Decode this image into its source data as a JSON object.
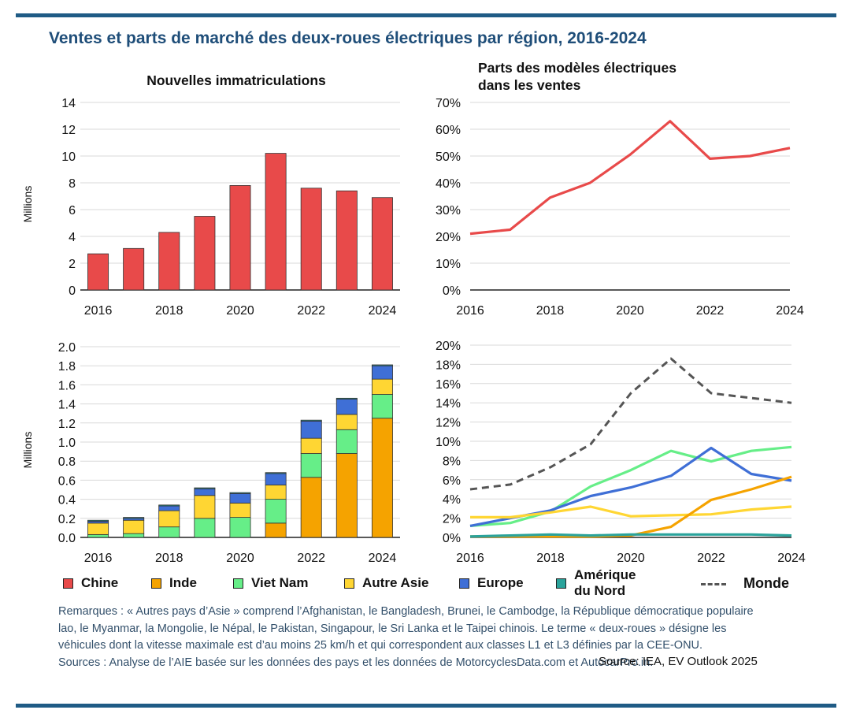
{
  "title": "Ventes et parts de marché des deux-roues électriques par région, 2016-2024",
  "colors": {
    "rule": "#1f5b85",
    "title": "#1f4e79",
    "chine": "#e84a4a",
    "inde": "#f5a300",
    "vietnam": "#66ee88",
    "autre_asie": "#ffd633",
    "europe": "#3f6fd6",
    "amerique_nord": "#2aa39b",
    "monde": "#555555"
  },
  "chart_data": [
    {
      "id": "tl",
      "type": "bar",
      "title": "Nouvelles immatriculations",
      "ylabel": "Millions",
      "categories": [
        "2016",
        "2017",
        "2018",
        "2019",
        "2020",
        "2021",
        "2022",
        "2023",
        "2024"
      ],
      "x_tick_labels": [
        "2016",
        "2018",
        "2020",
        "2022",
        "2024"
      ],
      "ylim": [
        0,
        14
      ],
      "y_ticks": [
        "0",
        "2",
        "4",
        "6",
        "8",
        "10",
        "12",
        "14"
      ],
      "series": [
        {
          "name": "Chine",
          "values": [
            2.7,
            3.1,
            4.3,
            5.5,
            7.8,
            10.2,
            7.6,
            7.4,
            6.9
          ]
        }
      ]
    },
    {
      "id": "tr",
      "type": "line",
      "title": "Parts des modèles électriques dans les ventes",
      "title_lines": [
        "Parts des modèles électriques",
        "dans les ventes"
      ],
      "x": [
        2016,
        2017,
        2018,
        2019,
        2020,
        2021,
        2022,
        2023,
        2024
      ],
      "x_tick_labels": [
        "2016",
        "2018",
        "2020",
        "2022",
        "2024"
      ],
      "ylim": [
        0,
        70
      ],
      "y_ticks": [
        "0%",
        "10%",
        "20%",
        "30%",
        "40%",
        "50%",
        "60%",
        "70%"
      ],
      "series": [
        {
          "name": "Chine",
          "values": [
            21,
            22.5,
            34.5,
            40,
            50.5,
            63,
            49,
            50,
            53
          ]
        }
      ]
    },
    {
      "id": "bl",
      "type": "bar",
      "stacked": true,
      "ylabel": "Millions",
      "categories": [
        "2016",
        "2017",
        "2018",
        "2019",
        "2020",
        "2021",
        "2022",
        "2023",
        "2024"
      ],
      "x_tick_labels": [
        "2016",
        "2018",
        "2020",
        "2022",
        "2024"
      ],
      "ylim": [
        0,
        2.0
      ],
      "y_ticks": [
        "0.0",
        "0.2",
        "0.4",
        "0.6",
        "0.8",
        "1.0",
        "1.2",
        "1.4",
        "1.6",
        "1.8",
        "2.0"
      ],
      "series": [
        {
          "name": "Inde",
          "values": [
            0.0,
            0.0,
            0.0,
            0.0,
            0.0,
            0.15,
            0.63,
            0.88,
            1.25
          ]
        },
        {
          "name": "Viet Nam",
          "values": [
            0.03,
            0.04,
            0.11,
            0.2,
            0.21,
            0.25,
            0.25,
            0.25,
            0.25
          ]
        },
        {
          "name": "Autre Asie",
          "values": [
            0.12,
            0.14,
            0.17,
            0.24,
            0.15,
            0.15,
            0.16,
            0.16,
            0.16
          ]
        },
        {
          "name": "Europe",
          "values": [
            0.02,
            0.02,
            0.05,
            0.07,
            0.1,
            0.12,
            0.18,
            0.16,
            0.14
          ]
        },
        {
          "name": "Amérique du Nord",
          "values": [
            0.01,
            0.01,
            0.01,
            0.01,
            0.01,
            0.01,
            0.01,
            0.01,
            0.01
          ]
        }
      ]
    },
    {
      "id": "br",
      "type": "line",
      "x": [
        2016,
        2017,
        2018,
        2019,
        2020,
        2021,
        2022,
        2023,
        2024
      ],
      "x_tick_labels": [
        "2016",
        "2018",
        "2020",
        "2022",
        "2024"
      ],
      "ylim": [
        0,
        20
      ],
      "y_ticks": [
        "0%",
        "2%",
        "4%",
        "6%",
        "8%",
        "10%",
        "12%",
        "14%",
        "16%",
        "18%",
        "20%"
      ],
      "series": [
        {
          "name": "Monde",
          "values": [
            5,
            5.5,
            7.3,
            9.7,
            15,
            18.6,
            15,
            14.5,
            14
          ],
          "dashed": true
        },
        {
          "name": "Viet Nam",
          "values": [
            1.2,
            1.5,
            2.7,
            5.3,
            7,
            9,
            7.9,
            9,
            9.4
          ]
        },
        {
          "name": "Europe",
          "values": [
            1.2,
            2,
            2.8,
            4.3,
            5.2,
            6.4,
            9.3,
            6.6,
            5.9
          ]
        },
        {
          "name": "Autre Asie",
          "values": [
            2.1,
            2.1,
            2.6,
            3.2,
            2.2,
            2.3,
            2.4,
            2.9,
            3.2
          ]
        },
        {
          "name": "Inde",
          "values": [
            0.1,
            0.1,
            0.1,
            0.1,
            0.2,
            1.1,
            3.9,
            5,
            6.3
          ]
        },
        {
          "name": "Amérique du Nord",
          "values": [
            0.1,
            0.2,
            0.3,
            0.2,
            0.3,
            0.3,
            0.3,
            0.3,
            0.2
          ]
        }
      ]
    }
  ],
  "legend": [
    {
      "label": "Chine",
      "color_key": "chine"
    },
    {
      "label": "Inde",
      "color_key": "inde"
    },
    {
      "label": "Viet Nam",
      "color_key": "vietnam"
    },
    {
      "label": "Autre Asie",
      "color_key": "autre_asie"
    },
    {
      "label": "Europe",
      "color_key": "europe"
    },
    {
      "label": "Amérique du Nord",
      "label_lines": [
        "Amérique",
        "du Nord"
      ],
      "color_key": "amerique_nord"
    },
    {
      "label": "Monde",
      "color_key": "monde",
      "dashed": true
    }
  ],
  "notes": "Remarques : « Autres pays d’Asie » comprend l’Afghanistan, le Bangladesh, Brunei, le Cambodge, la République démocratique populaire lao, le Myanmar, la Mongolie, le Népal, le Pakistan, Singapour, le Sri Lanka et le Taipei chinois. Le terme « deux-roues » désigne les véhicules dont la vitesse maximale est d’au moins 25 km/h et qui correspondent aux classes L1 et L3 définies par la CEE-ONU.",
  "source": "Source: IEA, EV Outlook 2025",
  "sources": "Sources : Analyse de l’AIE basée sur les données des pays et les données de MotorcyclesData.com et AutocarPro.in."
}
